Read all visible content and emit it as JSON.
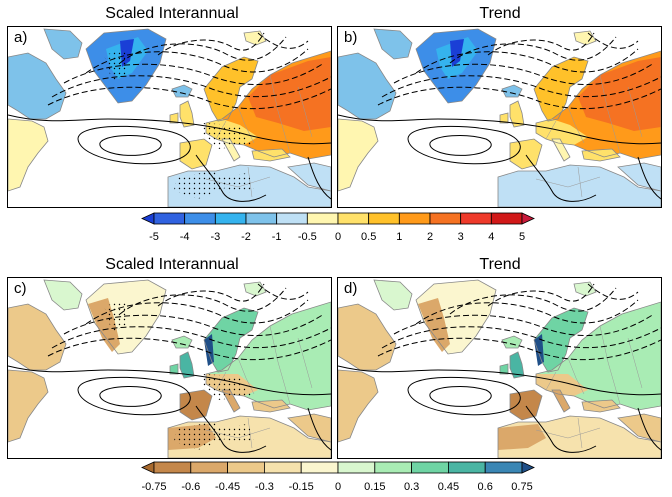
{
  "panels": [
    {
      "id": "a",
      "label": "a)",
      "title": "Scaled Interannual",
      "scheme": "temp",
      "stipple": true
    },
    {
      "id": "b",
      "label": "b)",
      "title": "Trend",
      "scheme": "temp",
      "stipple": false
    },
    {
      "id": "c",
      "label": "c)",
      "title": "Scaled Interannual",
      "scheme": "precip",
      "stipple": true
    },
    {
      "id": "d",
      "label": "d)",
      "title": "Trend",
      "scheme": "precip",
      "stipple": false
    }
  ],
  "colorbar_temp": {
    "labels": [
      "-5",
      "-4",
      "-3",
      "-2",
      "-1",
      "-0.5",
      "0",
      "0.5",
      "1",
      "2",
      "3",
      "4",
      "5"
    ],
    "colors": [
      "#1a3fd6",
      "#3062e0",
      "#3d8ee8",
      "#35b3ee",
      "#7ec2ea",
      "#bfe0f5",
      "#fff6b0",
      "#ffe16a",
      "#ffc12a",
      "#ff9a1a",
      "#f57222",
      "#ee3a2a",
      "#d11818",
      "#c81a3a"
    ]
  },
  "colorbar_precip": {
    "labels": [
      "-0.75",
      "-0.6",
      "-0.45",
      "-0.3",
      "-0.15",
      "0",
      "0.15",
      "0.3",
      "0.45",
      "0.6",
      "0.75"
    ],
    "colors": [
      "#a86a2e",
      "#c4874a",
      "#dba86a",
      "#ecc98a",
      "#f6e2ad",
      "#fbf6cf",
      "#d9f7cf",
      "#a9ecb4",
      "#6fd4a4",
      "#4ab5a3",
      "#3a86b4",
      "#1f4f88"
    ]
  }
}
